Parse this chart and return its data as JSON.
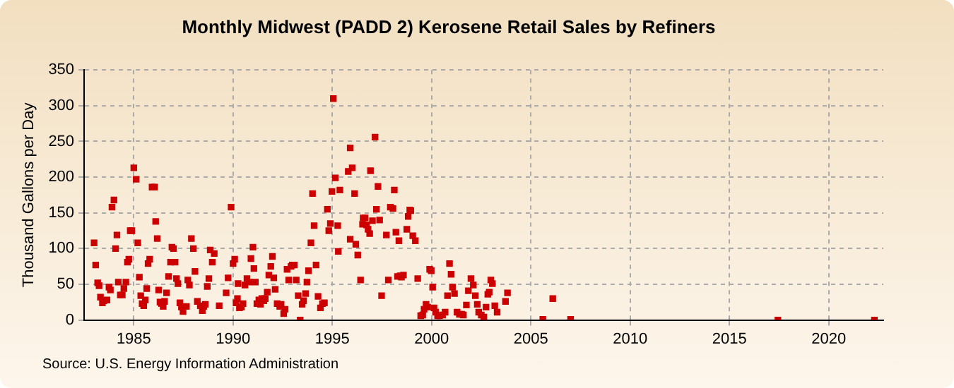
{
  "chart_data": {
    "type": "scatter",
    "title": "Monthly Midwest (PADD 2) Kerosene Retail Sales by Refiners",
    "ylabel": "Thousand Gallons per Day",
    "annotations": [
      "Source: U.S. Energy Information Administration"
    ],
    "xlim": [
      1982.5,
      2022.75
    ],
    "xticks": [
      1985,
      1990,
      1995,
      2000,
      2005,
      2010,
      2015,
      2020
    ],
    "ylim": [
      0,
      350
    ],
    "yticks": [
      0,
      50,
      100,
      150,
      200,
      250,
      300,
      350
    ],
    "grid": true,
    "legend": false,
    "marker": "square",
    "series": [
      {
        "color": "#cc0000",
        "x": [
          1983.0,
          1983.08,
          1983.18,
          1983.25,
          1983.32,
          1983.42,
          1983.5,
          1983.65,
          1983.75,
          1983.82,
          1983.9,
          1984.0,
          1984.08,
          1984.15,
          1984.22,
          1984.32,
          1984.42,
          1984.5,
          1984.6,
          1984.68,
          1984.75,
          1984.82,
          1984.9,
          1985.0,
          1985.12,
          1985.2,
          1985.28,
          1985.35,
          1985.42,
          1985.5,
          1985.58,
          1985.65,
          1985.72,
          1985.8,
          1985.92,
          1986.05,
          1986.1,
          1986.18,
          1986.25,
          1986.32,
          1986.4,
          1986.48,
          1986.55,
          1986.65,
          1986.75,
          1986.85,
          1986.92,
          1987.0,
          1987.08,
          1987.15,
          1987.22,
          1987.32,
          1987.4,
          1987.48,
          1987.65,
          1987.72,
          1987.8,
          1987.9,
          1988.0,
          1988.08,
          1988.2,
          1988.35,
          1988.45,
          1988.52,
          1988.6,
          1988.7,
          1988.78,
          1988.85,
          1988.95,
          1989.05,
          1989.3,
          1989.65,
          1989.75,
          1989.9,
          1990.0,
          1990.08,
          1990.15,
          1990.25,
          1990.22,
          1990.32,
          1990.42,
          1990.5,
          1990.6,
          1990.7,
          1990.82,
          1990.9,
          1991.0,
          1991.05,
          1991.12,
          1991.2,
          1991.3,
          1991.38,
          1991.45,
          1991.55,
          1991.62,
          1991.72,
          1991.8,
          1991.9,
          1991.98,
          1992.05,
          1992.12,
          1992.22,
          1992.35,
          1992.42,
          1992.55,
          1992.62,
          1992.72,
          1992.8,
          1992.92,
          1992.98,
          1993.08,
          1993.18,
          1993.28,
          1993.38,
          1993.48,
          1993.55,
          1993.65,
          1993.72,
          1993.8,
          1993.92,
          1994.0,
          1994.08,
          1994.18,
          1994.28,
          1994.4,
          1994.5,
          1994.6,
          1994.75,
          1994.82,
          1994.9,
          1994.98,
          1995.05,
          1995.15,
          1995.27,
          1995.3,
          1995.38,
          1995.8,
          1995.9,
          1996.0,
          1996.12,
          1995.9,
          1996.18,
          1996.28,
          1996.42,
          1996.52,
          1996.55,
          1996.65,
          1996.72,
          1996.8,
          1996.88,
          1996.92,
          1997.02,
          1997.15,
          1997.22,
          1997.3,
          1997.38,
          1997.48,
          1997.72,
          1997.82,
          1997.92,
          1998.05,
          1998.12,
          1998.2,
          1998.28,
          1998.35,
          1998.42,
          1998.48,
          1998.58,
          1998.75,
          1998.82,
          1998.9,
          1998.95,
          1999.05,
          1999.18,
          1999.3,
          1999.45,
          1999.55,
          1999.62,
          1999.72,
          1999.8,
          1999.9,
          1999.98,
          2000.05,
          2000.12,
          2000.2,
          2000.3,
          2000.4,
          2000.55,
          2000.68,
          2000.8,
          2000.9,
          2000.98,
          2001.05,
          2001.15,
          2001.28,
          2001.4,
          2001.52,
          2001.6,
          2001.75,
          2001.85,
          2001.98,
          2002.1,
          2002.2,
          2002.3,
          2002.37,
          2002.5,
          2002.63,
          2002.74,
          2002.83,
          2002.9,
          2002.98,
          2003.06,
          2003.18,
          2003.3,
          2003.72,
          2003.82,
          2005.6,
          2006.1,
          2007.0,
          2017.44,
          2022.3
        ],
        "values": [
          108,
          77,
          52,
          48,
          32,
          24,
          27,
          28,
          46,
          42,
          158,
          168,
          100,
          119,
          53,
          35,
          35,
          44,
          53,
          81,
          85,
          125,
          125,
          213,
          197,
          108,
          60,
          34,
          23,
          20,
          28,
          44,
          79,
          85,
          186,
          186,
          138,
          114,
          42,
          25,
          23,
          19,
          26,
          38,
          61,
          81,
          102,
          100,
          81,
          58,
          51,
          24,
          18,
          12,
          19,
          56,
          49,
          114,
          100,
          68,
          26,
          20,
          13,
          19,
          22,
          47,
          58,
          98,
          81,
          93,
          20,
          38,
          59,
          158,
          79,
          85,
          24,
          51,
          30,
          17,
          18,
          23,
          49,
          58,
          53,
          86,
          102,
          72,
          53,
          23,
          28,
          22,
          30,
          27,
          30,
          39,
          63,
          75,
          89,
          59,
          43,
          23,
          19,
          22,
          9,
          15,
          71,
          56,
          75,
          77,
          77,
          56,
          34,
          0,
          22,
          27,
          37,
          53,
          69,
          108,
          177,
          132,
          77,
          33,
          17,
          23,
          24,
          155,
          125,
          135,
          180,
          310,
          199,
          132,
          96,
          182,
          208,
          241,
          213,
          177,
          113,
          106,
          91,
          56,
          134,
          143,
          143,
          133,
          127,
          121,
          209,
          139,
          256,
          155,
          187,
          140,
          34,
          119,
          56,
          158,
          156,
          182,
          123,
          61,
          111,
          62,
          60,
          63,
          127,
          145,
          154,
          153,
          118,
          111,
          58,
          6,
          7,
          15,
          22,
          18,
          71,
          69,
          46,
          17,
          11,
          6,
          6,
          7,
          11,
          34,
          79,
          64,
          46,
          37,
          11,
          8,
          8,
          7,
          21,
          41,
          58,
          49,
          34,
          22,
          11,
          7,
          4,
          18,
          36,
          39,
          56,
          51,
          20,
          11,
          26,
          38,
          1,
          30,
          1,
          0,
          0
        ]
      }
    ]
  }
}
